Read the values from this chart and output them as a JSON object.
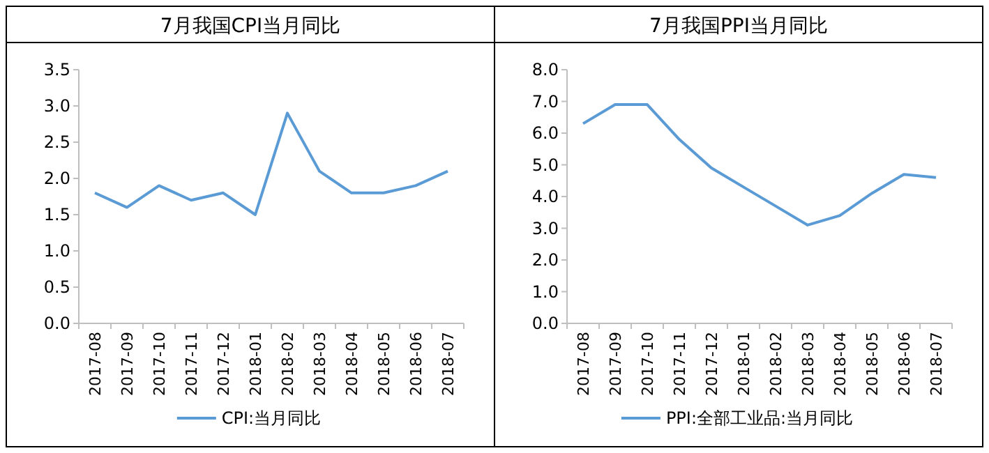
{
  "chart_data": [
    {
      "type": "line",
      "title": "7月我国CPI当月同比",
      "categories": [
        "2017-08",
        "2017-09",
        "2017-10",
        "2017-11",
        "2017-12",
        "2018-01",
        "2018-02",
        "2018-03",
        "2018-04",
        "2018-05",
        "2018-06",
        "2018-07"
      ],
      "series": [
        {
          "name": "CPI:当月同比",
          "color": "#5b9bd5",
          "values": [
            1.8,
            1.6,
            1.9,
            1.7,
            1.8,
            1.5,
            2.9,
            2.1,
            1.8,
            1.8,
            1.9,
            2.1
          ]
        }
      ],
      "ylim": [
        0,
        3.5
      ],
      "yticks": [
        {
          "value": 0,
          "label": "0.0"
        },
        0.5,
        {
          "value": 1,
          "label": "1.0"
        },
        1.5,
        {
          "value": 2,
          "label": "2.0"
        },
        2.5,
        {
          "value": 3,
          "label": "3.0"
        },
        3.5
      ],
      "legend": "bottom",
      "marker": "none",
      "grid": false
    },
    {
      "type": "line",
      "title": "7月我国PPI当月同比",
      "categories": [
        "2017-08",
        "2017-09",
        "2017-10",
        "2017-11",
        "2017-12",
        "2018-01",
        "2018-02",
        "2018-03",
        "2018-04",
        "2018-05",
        "2018-06",
        "2018-07"
      ],
      "series": [
        {
          "name": "PPI:全部工业品:当月同比",
          "color": "#5b9bd5",
          "values": [
            6.3,
            6.9,
            6.9,
            5.8,
            4.9,
            4.3,
            3.7,
            3.1,
            3.4,
            4.1,
            4.7,
            4.6
          ]
        }
      ],
      "ylim": [
        0,
        8
      ],
      "yticks": [
        {
          "value": 0,
          "label": "0.0"
        },
        {
          "value": 1,
          "label": "1.0"
        },
        {
          "value": 2,
          "label": "2.0"
        },
        {
          "value": 3,
          "label": "3.0"
        },
        {
          "value": 4,
          "label": "4.0"
        },
        {
          "value": 5,
          "label": "5.0"
        },
        {
          "value": 6,
          "label": "6.0"
        },
        {
          "value": 7,
          "label": "7.0"
        },
        {
          "value": 8,
          "label": "8.0"
        }
      ],
      "legend": "bottom",
      "marker": "none",
      "grid": false
    }
  ]
}
